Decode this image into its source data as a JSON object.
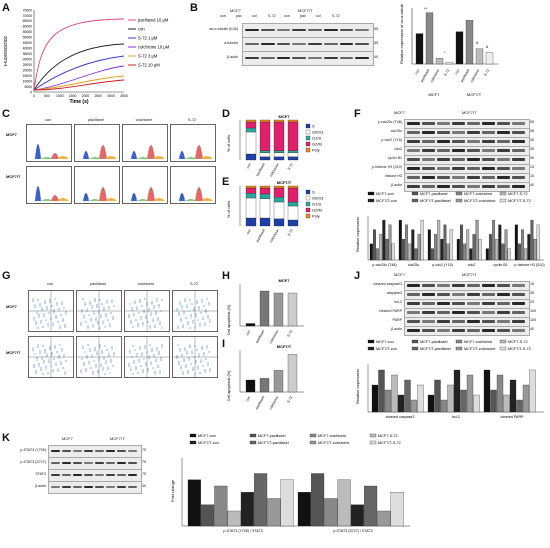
{
  "panels": {
    "A": "A",
    "B": "B",
    "C": "C",
    "D": "D",
    "E": "E",
    "F": "F",
    "G": "G",
    "H": "H",
    "I": "I",
    "J": "J",
    "K": "K"
  },
  "panelA": {
    "ylabel": "Fluorescence",
    "xlabel": "Time (s)",
    "yticks": [
      "75000",
      "70000",
      "65000",
      "60000",
      "55000",
      "50000",
      "45000",
      "40000",
      "35000",
      "30000",
      "25000",
      "20000",
      "15000",
      "10000",
      "5000",
      "0"
    ],
    "xticks": [
      "0",
      "500",
      "1000",
      "1500",
      "2000",
      "2500",
      "3000",
      "3500"
    ],
    "legend": [
      "paclitaxel 10 μM",
      "con",
      "S-72 1 μM",
      "colchicine 10 μM",
      "S-72 3 μM",
      "S-72 10 μM"
    ],
    "colors": [
      "#e8477a",
      "#222222",
      "#3a3ad0",
      "#8a2be2",
      "#e0a020",
      "#cc2020"
    ]
  },
  "panelB": {
    "groups": [
      "MCF7",
      "MCF7/T"
    ],
    "lanes": [
      "con",
      "pac",
      "col",
      "S-72",
      "con",
      "pac",
      "col",
      "S-72"
    ],
    "rows": [
      "ac-α-tubulin (K40)",
      "α-tubulin",
      "β-actin"
    ],
    "mw": [
      "55",
      "55",
      "40"
    ],
    "ylabel": "Relative expression of ac-α-tubulin (K40)",
    "bars": [
      "con",
      "paclitaxel",
      "colchicine",
      "S-72",
      "con",
      "paclitaxel",
      "colchicine",
      "S-72"
    ],
    "groupLabels": [
      "MCF7",
      "MCF7/T"
    ],
    "sig": [
      "**",
      "*",
      "#",
      "#"
    ]
  },
  "panelC": {
    "cols": [
      "con",
      "paclitaxel",
      "colchicine",
      "S-72"
    ],
    "rows": [
      "MCF7",
      "MCF7/T"
    ]
  },
  "panelD": {
    "title": "MCF7",
    "ylabel": "% of cells",
    "cats": [
      "con",
      "paclitaxel",
      "colchicine",
      "S-72"
    ],
    "legend": [
      "S",
      "G0/G1",
      "G1/S",
      "G2/M",
      "Poly"
    ],
    "colors": [
      "#1f3fa8",
      "#ffffff",
      "#2aa8a0",
      "#e0206a",
      "#e88a20"
    ]
  },
  "panelE": {
    "title": "MCF7/T",
    "ylabel": "% of cells",
    "cats": [
      "con",
      "paclitaxel",
      "colchicine",
      "S-72"
    ],
    "legend": [
      "S",
      "G0/G1",
      "G1/S",
      "G2/M",
      "Poly"
    ]
  },
  "panelF": {
    "groups": [
      "MCF7",
      "MCF7/T"
    ],
    "lanes": [
      "con",
      "pac",
      "col",
      "S-72",
      "con",
      "pac",
      "col",
      "S-72"
    ],
    "rows": [
      "p-cdc25c (T48)",
      "cdc25c",
      "p-cdc2 (Y15)",
      "cdc2",
      "cyclin B1",
      "p-histone H3 (S10)",
      "histone H3",
      "β-actin"
    ],
    "mw": [
      "55",
      "55",
      "35",
      "35",
      "55",
      "15",
      "15",
      "40"
    ],
    "legend": [
      "MCF7-con",
      "MCF7-paclitaxel",
      "MCF7-colchicine",
      "MCF7-S-72",
      "MCF7/T-con",
      "MCF7/T-paclitaxel",
      "MCF7/T-colchicine",
      "MCF7/T-S-72"
    ],
    "ylabel": "Relative expression",
    "xcats": [
      "p-cdc25c (T48)",
      "cdc25c",
      "p-cdc2 (Y15)",
      "cdc2",
      "cyclin B1",
      "p-histone H3 (S10)"
    ]
  },
  "panelG": {
    "cols": [
      "con",
      "paclitaxel",
      "colchicine",
      "S-72"
    ],
    "rows": [
      "MCF7",
      "MCF7/T"
    ]
  },
  "panelH": {
    "title": "MCF7",
    "ylabel": "Cell apoptosis (%)",
    "cats": [
      "con",
      "paclitaxel",
      "colchicine",
      "S-72"
    ],
    "values": [
      2.5,
      35,
      33,
      33
    ],
    "ylim": [
      0,
      40
    ]
  },
  "panelI": {
    "title": "MCF7/T",
    "ylabel": "Cell apoptosis (%)",
    "cats": [
      "con",
      "paclitaxel",
      "colchicine",
      "S-72"
    ],
    "values": [
      15,
      17,
      27,
      47
    ],
    "ylim": [
      0,
      50
    ]
  },
  "panelJ": {
    "groups": [
      "MCF7",
      "MCF7/T"
    ],
    "lanes": [
      "con",
      "pac",
      "col",
      "S-72",
      "con",
      "pac",
      "col",
      "S-72"
    ],
    "rows": [
      "cleaved caspase3",
      "caspase3",
      "bcl-2",
      "cleaved PARP",
      "PARP",
      "β-actin"
    ],
    "mw": [
      "15",
      "35",
      "25",
      "100",
      "100",
      "40"
    ],
    "legend": [
      "MCF7-con",
      "MCF7-paclitaxel",
      "MCF7-colchicine",
      "MCF7-S-72",
      "MCF7/T-con",
      "MCF7/T-paclitaxel",
      "MCF7/T-colchicine",
      "MCF7/T-S-72"
    ],
    "ylabel": "Relative expression",
    "xcats": [
      "cleaved caspase3",
      "bcl-2",
      "cleaved PARP"
    ]
  },
  "panelK": {
    "groups": [
      "MCF7",
      "MCF7/T"
    ],
    "lanes": [
      "con",
      "pac",
      "col",
      "S-72",
      "con",
      "pac",
      "col",
      "S-72"
    ],
    "rows": [
      "p-STAT3 (Y705)",
      "p-STAT3 (S727)",
      "STAT3",
      "β-actin"
    ],
    "mw": [
      "75",
      "75",
      "75",
      "40"
    ],
    "legend": [
      "MCF7-con",
      "MCF7-paclitaxel",
      "MCF7-colchicine",
      "MCF7-S-72",
      "MCF7/T-con",
      "MCF7/T-paclitaxel",
      "MCF7/T-colchicine",
      "MCF7/T-S-72"
    ],
    "ylabel": "Fold change",
    "xcats": [
      "p-STAT3 (Y705) / STAT3",
      "p-STAT3 (S727) / STAT3"
    ]
  },
  "chart_data": [
    {
      "type": "bar",
      "title": "MCF7",
      "ylabel": "Cell apoptosis (%)",
      "categories": [
        "con",
        "paclitaxel",
        "colchicine",
        "S-72"
      ],
      "values": [
        2.5,
        35,
        33,
        33
      ],
      "ylim": [
        0,
        40
      ]
    },
    {
      "type": "bar",
      "title": "MCF7/T",
      "ylabel": "Cell apoptosis (%)",
      "categories": [
        "con",
        "paclitaxel",
        "colchicine",
        "S-72"
      ],
      "values": [
        15,
        17,
        27,
        47
      ],
      "ylim": [
        0,
        50
      ]
    }
  ]
}
